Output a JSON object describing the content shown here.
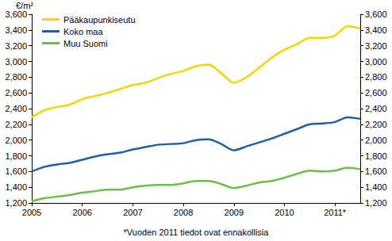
{
  "chart_data": {
    "type": "line",
    "ylabel": "€/m²",
    "annotations": [
      "*Vuoden 2011 tiedot ovat ennakollisia"
    ],
    "categories": [
      "2005",
      null,
      null,
      null,
      "2006",
      null,
      null,
      null,
      "2007",
      null,
      null,
      null,
      "2008",
      null,
      null,
      null,
      "2009",
      null,
      null,
      null,
      "2010",
      null,
      null,
      null,
      "2011*",
      null,
      null
    ],
    "series": [
      {
        "name": "Pääkaupunkiseutu",
        "color": "#f2d600",
        "values": [
          2290,
          2380,
          2420,
          2450,
          2520,
          2560,
          2600,
          2650,
          2700,
          2730,
          2790,
          2840,
          2880,
          2940,
          2960,
          2850,
          2730,
          2800,
          2920,
          3050,
          3150,
          3220,
          3300,
          3300,
          3330,
          3450,
          3420
        ]
      },
      {
        "name": "Koko maa",
        "color": "#1f5fa8",
        "values": [
          1600,
          1660,
          1690,
          1710,
          1750,
          1790,
          1820,
          1840,
          1880,
          1910,
          1940,
          1950,
          1960,
          2000,
          2010,
          1950,
          1870,
          1920,
          1970,
          2020,
          2080,
          2140,
          2200,
          2210,
          2230,
          2290,
          2270
        ]
      },
      {
        "name": "Muu Suomi",
        "color": "#6abf4b",
        "values": [
          1220,
          1260,
          1280,
          1300,
          1330,
          1350,
          1370,
          1370,
          1400,
          1420,
          1430,
          1430,
          1450,
          1480,
          1480,
          1440,
          1390,
          1420,
          1460,
          1480,
          1520,
          1570,
          1610,
          1600,
          1610,
          1650,
          1630
        ]
      }
    ],
    "ylim": [
      1200,
      3600
    ],
    "yticks": [
      1200,
      1400,
      1600,
      1800,
      2000,
      2200,
      2400,
      2600,
      2800,
      3000,
      3200,
      3400,
      3600
    ],
    "y2lim": [
      1200,
      3600
    ],
    "y2ticks": [
      1200,
      1400,
      1600,
      1800,
      2000,
      2200,
      2400,
      2600,
      2800,
      3000,
      3200,
      3400,
      3600
    ],
    "grid": false,
    "legend": "top-left"
  }
}
